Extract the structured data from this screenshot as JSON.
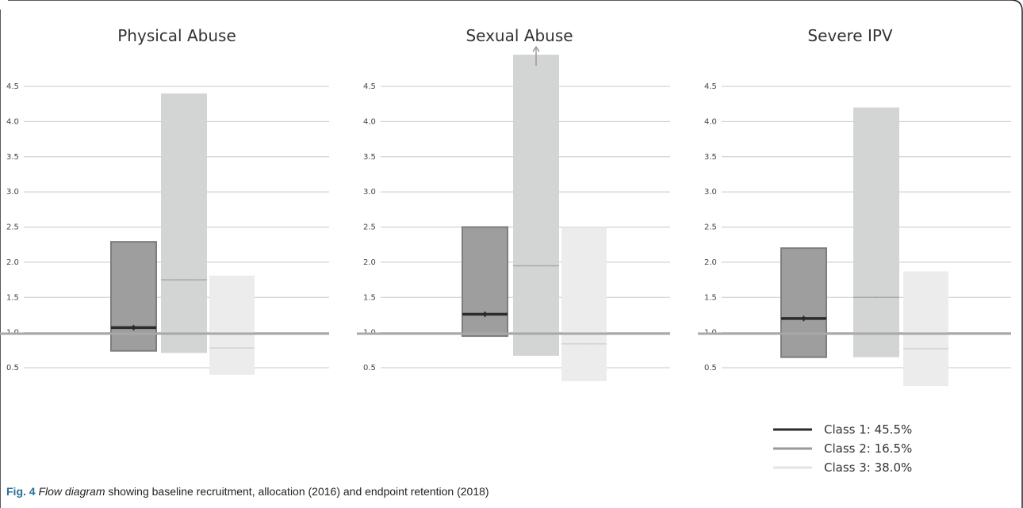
{
  "caption": {
    "fig_label": "Fig. 4",
    "italic_text": "Flow diagram",
    "rest_text": " showing baseline recruitment, allocation (2016) and endpoint retention (2018)"
  },
  "legend": [
    {
      "label": "Class 1: 45.5%",
      "color": "#2b2b2b"
    },
    {
      "label": "Class 2: 16.5%",
      "color": "#9a9a9a"
    },
    {
      "label": "Class 3: 38.0%",
      "color": "#e4e4e4"
    }
  ],
  "chart_data": [
    {
      "type": "bar",
      "title": "Physical Abuse",
      "yticks": [
        "0.5",
        "1.0",
        "1.5",
        "2.0",
        "2.5",
        "3.0",
        "3.5",
        "4.0",
        "4.5"
      ],
      "reference_line": 1.0,
      "series": [
        {
          "name": "Class 1: 45.5%",
          "estimate": 1.07,
          "lower": 0.74,
          "upper": 2.29
        },
        {
          "name": "Class 2: 16.5%",
          "estimate": 1.75,
          "lower": 0.71,
          "upper": 4.4
        },
        {
          "name": "Class 3: 38.0%",
          "estimate": 0.78,
          "lower": 0.4,
          "upper": 1.81
        }
      ]
    },
    {
      "type": "bar",
      "title": "Sexual Abuse",
      "yticks": [
        "0.5",
        "1.0",
        "1.5",
        "2.0",
        "2.5",
        "3.0",
        "3.5",
        "4.0",
        "4.5"
      ],
      "reference_line": 1.0,
      "series": [
        {
          "name": "Class 1: 45.5%",
          "estimate": 1.26,
          "lower": 0.95,
          "upper": 2.5
        },
        {
          "name": "Class 2: 16.5%",
          "estimate": 1.95,
          "lower": 0.67,
          "upper": 4.95,
          "truncated": true
        },
        {
          "name": "Class 3: 38.0%",
          "estimate": 0.84,
          "lower": 0.31,
          "upper": 2.5
        }
      ]
    },
    {
      "type": "bar",
      "title": "Severe IPV",
      "yticks": [
        "0.5",
        "1.0",
        "1.5",
        "2.0",
        "2.5",
        "3.0",
        "3.5",
        "4.0",
        "4.5"
      ],
      "reference_line": 1.0,
      "series": [
        {
          "name": "Class 1: 45.5%",
          "estimate": 1.2,
          "lower": 0.65,
          "upper": 2.2
        },
        {
          "name": "Class 2: 16.5%",
          "estimate": 1.5,
          "lower": 0.65,
          "upper": 4.2
        },
        {
          "name": "Class 3: 38.0%",
          "estimate": 0.77,
          "lower": 0.24,
          "upper": 1.87
        }
      ]
    }
  ]
}
